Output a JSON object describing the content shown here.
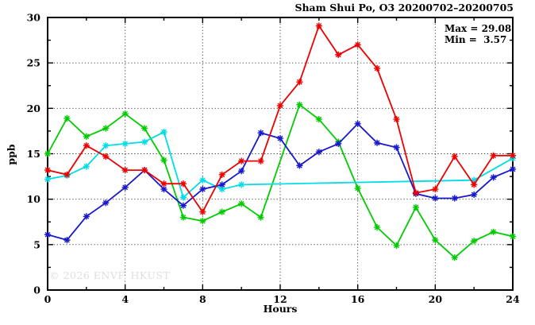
{
  "window": {
    "background": "#ffffff"
  },
  "chart_data": {
    "type": "line",
    "title": "Sham Shui Po, O3 20200702–20200705",
    "xlabel": "Hours",
    "ylabel": "ppb",
    "xlim": [
      0,
      24
    ],
    "ylim": [
      0,
      30
    ],
    "xticks": [
      0,
      4,
      8,
      12,
      16,
      20,
      24
    ],
    "yticks": [
      0,
      5,
      10,
      15,
      20,
      25,
      30
    ],
    "x_minor_step": 2,
    "y_minor_step": 2.5,
    "grid": "dotted",
    "legend_position": "none",
    "marker": "asterisk",
    "annotation": {
      "max_label": "Max = 29.08",
      "min_label": "Min =  3.57"
    },
    "max_value": 29.08,
    "min_value": 3.57,
    "watermark": "© 2026 ENVF, HKUST",
    "series": [
      {
        "name": "green",
        "color": "#00cc00",
        "points": [
          [
            0,
            15.0
          ],
          [
            1,
            18.9
          ],
          [
            2,
            16.9
          ],
          [
            3,
            17.8
          ],
          [
            4,
            19.4
          ],
          [
            5,
            17.8
          ],
          [
            6,
            14.3
          ],
          [
            7,
            8.0
          ],
          [
            8,
            7.6
          ],
          [
            9,
            8.6
          ],
          [
            10,
            9.5
          ],
          [
            11,
            8.0
          ],
          [
            13,
            20.4
          ],
          [
            14,
            18.8
          ],
          [
            15,
            16.3
          ],
          [
            16,
            11.2
          ],
          [
            17,
            6.9
          ],
          [
            18,
            4.9
          ],
          [
            19,
            9.1
          ],
          [
            20,
            5.5
          ],
          [
            21,
            3.57
          ],
          [
            22,
            5.4
          ],
          [
            23,
            6.4
          ],
          [
            24,
            5.9
          ]
        ]
      },
      {
        "name": "cyan",
        "color": "#00dde8",
        "points": [
          [
            0,
            12.2
          ],
          [
            1,
            12.6
          ],
          [
            2,
            13.6
          ],
          [
            3,
            15.9
          ],
          [
            4,
            16.1
          ],
          [
            5,
            16.3
          ],
          [
            6,
            17.4
          ],
          [
            7,
            10.2
          ],
          [
            8,
            12.1
          ],
          [
            9,
            11.1
          ],
          [
            10,
            11.6
          ],
          [
            22,
            12.1
          ],
          [
            24,
            14.5
          ]
        ]
      },
      {
        "name": "blue",
        "color": "#1818cc",
        "points": [
          [
            0,
            6.1
          ],
          [
            1,
            5.5
          ],
          [
            2,
            8.1
          ],
          [
            3,
            9.6
          ],
          [
            4,
            11.3
          ],
          [
            5,
            13.2
          ],
          [
            6,
            11.1
          ],
          [
            7,
            9.3
          ],
          [
            8,
            11.1
          ],
          [
            9,
            11.6
          ],
          [
            10,
            13.1
          ],
          [
            11,
            17.3
          ],
          [
            12,
            16.7
          ],
          [
            13,
            13.7
          ],
          [
            14,
            15.2
          ],
          [
            15,
            16.1
          ],
          [
            16,
            18.3
          ],
          [
            17,
            16.2
          ],
          [
            18,
            15.7
          ],
          [
            19,
            10.6
          ],
          [
            20,
            10.1
          ],
          [
            21,
            10.1
          ],
          [
            22,
            10.5
          ],
          [
            23,
            12.4
          ],
          [
            24,
            13.3
          ]
        ]
      },
      {
        "name": "red",
        "color": "#ee0000",
        "points": [
          [
            0,
            13.2
          ],
          [
            1,
            12.7
          ],
          [
            2,
            15.9
          ],
          [
            3,
            14.7
          ],
          [
            4,
            13.2
          ],
          [
            5,
            13.2
          ],
          [
            6,
            11.7
          ],
          [
            7,
            11.7
          ],
          [
            8,
            8.6
          ],
          [
            9,
            12.7
          ],
          [
            10,
            14.2
          ],
          [
            11,
            14.2
          ],
          [
            12,
            20.3
          ],
          [
            13,
            22.9
          ],
          [
            14,
            29.08
          ],
          [
            15,
            25.9
          ],
          [
            16,
            27.0
          ],
          [
            17,
            24.4
          ],
          [
            18,
            18.8
          ],
          [
            19,
            10.7
          ],
          [
            20,
            11.1
          ],
          [
            21,
            14.7
          ],
          [
            22,
            11.6
          ],
          [
            23,
            14.8
          ],
          [
            24,
            14.8
          ]
        ]
      }
    ]
  }
}
